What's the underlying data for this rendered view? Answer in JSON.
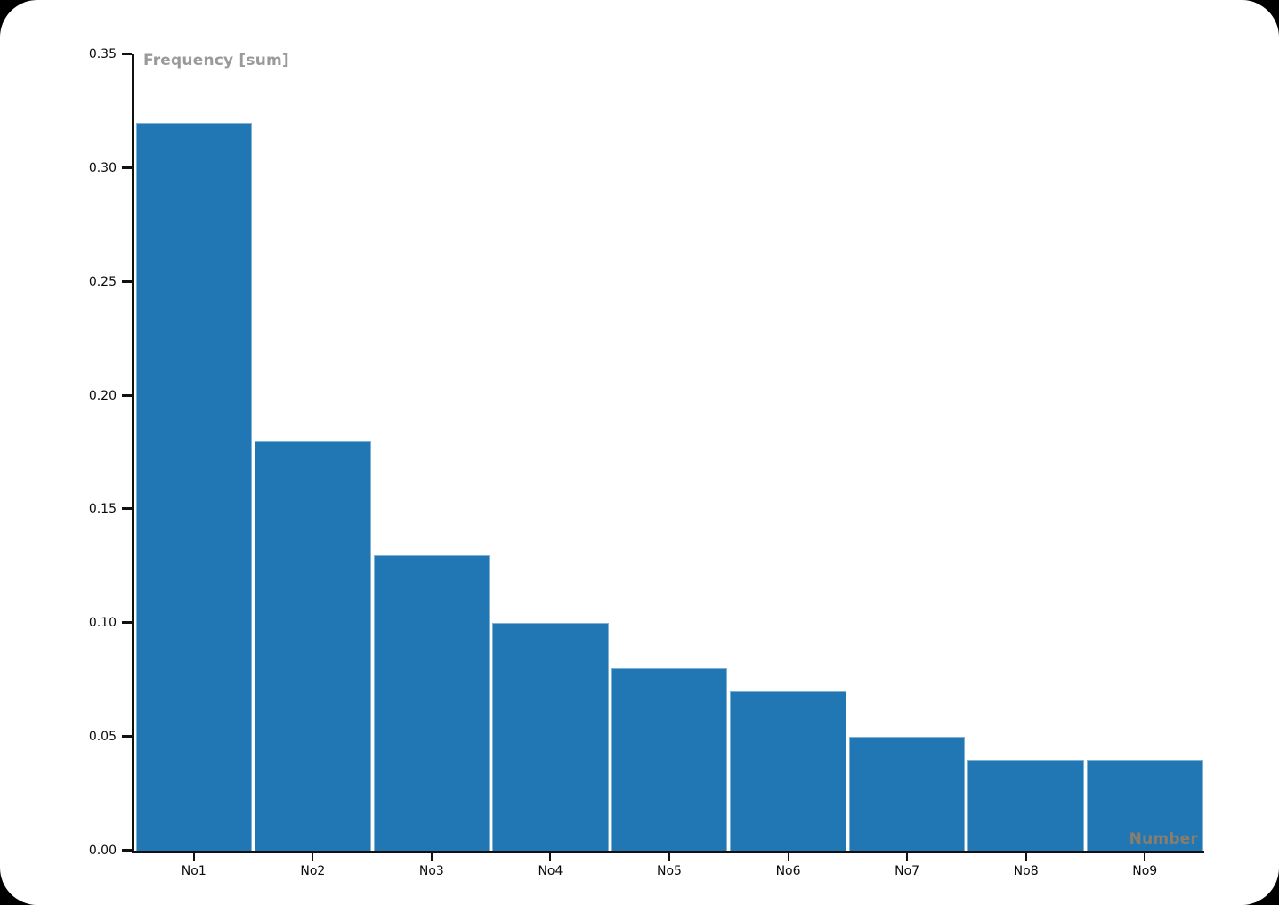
{
  "page": {
    "background_color": "#000000",
    "canvas_color": "#ffffff"
  },
  "chart_data": {
    "type": "bar",
    "title": "",
    "categories": [
      "No1",
      "No2",
      "No3",
      "No4",
      "No5",
      "No6",
      "No7",
      "No8",
      "No9"
    ],
    "values": [
      0.32,
      0.18,
      0.13,
      0.1,
      0.08,
      0.07,
      0.05,
      0.04,
      0.04
    ],
    "xlabel": "Number",
    "ylabel": "Frequency [sum]",
    "ylim": [
      0,
      0.35
    ],
    "ytick_labels": [
      "0.00",
      "0.05",
      "0.10",
      "0.15",
      "0.20",
      "0.25",
      "0.30",
      "0.35"
    ],
    "grid": false,
    "legend": false,
    "bar_color": "#2177b4",
    "bar_edge_color": "#7fb0d5",
    "axis_color": "#111111",
    "ylabel_color": "#9a9a9a",
    "xlabel_color": "#8b7d6b",
    "tick_label_color": "#0a0a0a"
  }
}
